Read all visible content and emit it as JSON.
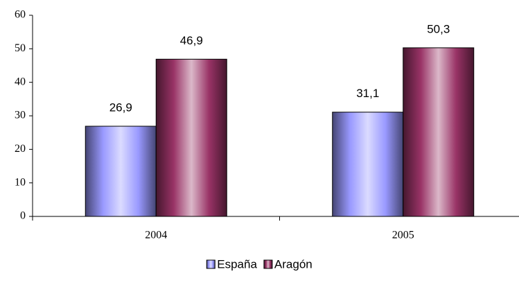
{
  "chart_data": {
    "type": "bar",
    "categories": [
      "2004",
      "2005"
    ],
    "series": [
      {
        "name": "España",
        "color": "#9999ff",
        "values": [
          26.9,
          31.1
        ],
        "value_labels": [
          "26,9",
          "31,1"
        ]
      },
      {
        "name": "Aragón",
        "color": "#993366",
        "values": [
          46.9,
          50.3
        ],
        "value_labels": [
          "46,9",
          "50,3"
        ]
      }
    ],
    "ylim": [
      0,
      60
    ],
    "yticks": [
      0,
      10,
      20,
      30,
      40,
      50,
      60
    ],
    "grid": false,
    "legend": "bottom"
  }
}
